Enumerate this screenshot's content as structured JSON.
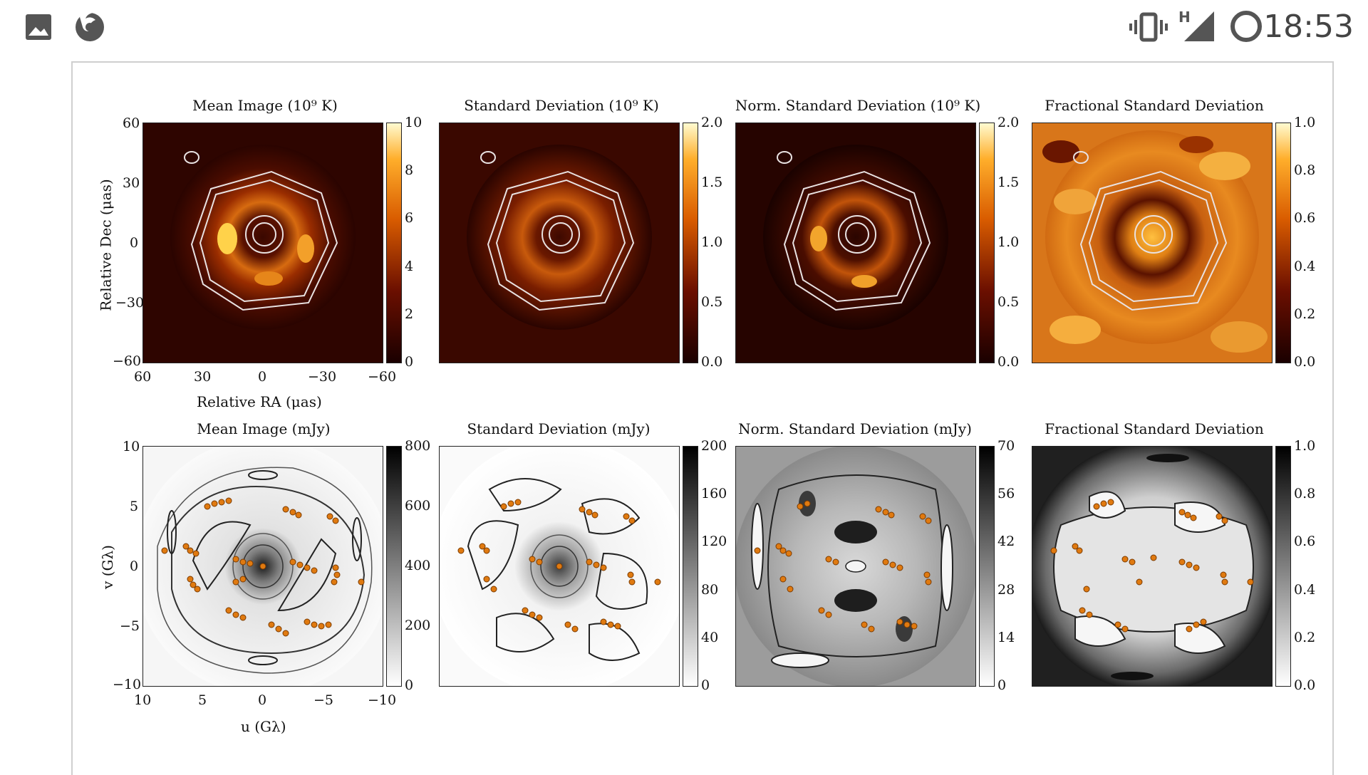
{
  "status_bar": {
    "time": "18:53",
    "network_label": "H",
    "left_icons": [
      "image-icon",
      "firefox-icon"
    ],
    "right_icons": [
      "vibrate-icon",
      "signal-icon",
      "circle-icon"
    ]
  },
  "figure": {
    "top_row": {
      "titles": [
        "Mean Image (10⁹ K)",
        "Standard Deviation (10⁹ K)",
        "Norm. Standard Deviation (10⁹ K)",
        "Fractional Standard Deviation"
      ],
      "colorbar_ticks": [
        [
          "10",
          "8",
          "6",
          "4",
          "2",
          "0"
        ],
        [
          "2.0",
          "1.5",
          "1.0",
          "0.5",
          "0.0"
        ],
        [
          "2.0",
          "1.5",
          "1.0",
          "0.5",
          "0.0"
        ],
        [
          "1.0",
          "0.8",
          "0.6",
          "0.4",
          "0.2",
          "0.0"
        ]
      ],
      "y_ticks": [
        "60",
        "30",
        "0",
        "−30",
        "−60"
      ],
      "x_ticks": [
        "60",
        "30",
        "0",
        "−30",
        "−60"
      ],
      "ylabel": "Relative Dec (μas)",
      "xlabel": "Relative RA (μas)"
    },
    "bottom_row": {
      "titles": [
        "Mean Image (mJy)",
        "Standard Deviation (mJy)",
        "Norm. Standard Deviation (mJy)",
        "Fractional Standard Deviation"
      ],
      "colorbar_ticks": [
        [
          "800",
          "600",
          "400",
          "200",
          "0"
        ],
        [
          "200",
          "160",
          "120",
          "80",
          "40",
          "0"
        ],
        [
          "70",
          "56",
          "42",
          "28",
          "14",
          "0"
        ],
        [
          "1.0",
          "0.8",
          "0.6",
          "0.4",
          "0.2",
          "0.0"
        ]
      ],
      "y_ticks": [
        "10",
        "5",
        "0",
        "−5",
        "−10"
      ],
      "x_ticks": [
        "10",
        "5",
        "0",
        "−5",
        "−10"
      ],
      "ylabel": "v (Gλ)",
      "xlabel": "u (Gλ)"
    }
  }
}
